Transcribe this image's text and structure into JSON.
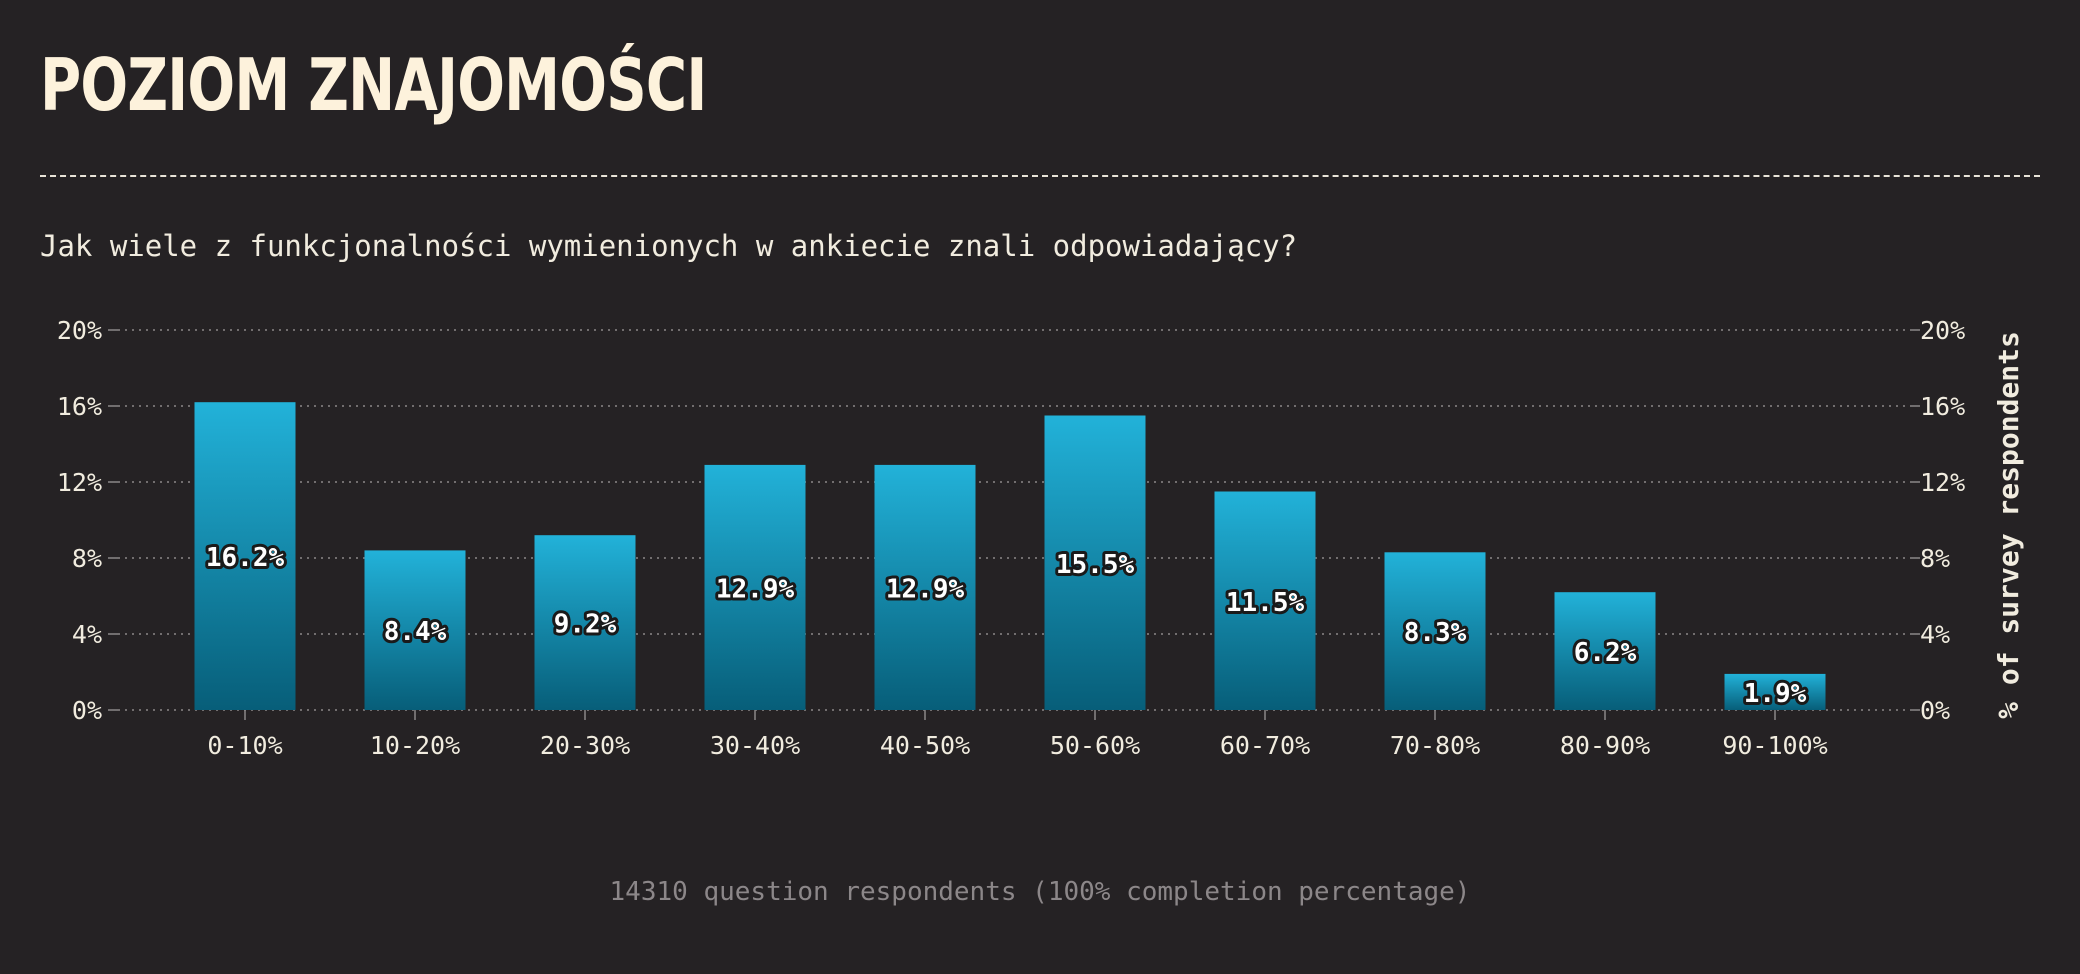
{
  "header": {
    "title": "POZIOM ZNAJOMOŚCI",
    "subtitle": "Jak wiele z funkcjonalności wymienionych w ankiecie znali odpowiadający?"
  },
  "footer": {
    "note": "14310 question respondents (100% completion percentage)"
  },
  "colors": {
    "background": "#252224",
    "bar_top": "#22b2d9",
    "bar_bottom": "#075e79",
    "text": "#f1ecdf",
    "grid": "#8b8788"
  },
  "chart_data": {
    "type": "bar",
    "categories": [
      "0-10%",
      "10-20%",
      "20-30%",
      "30-40%",
      "40-50%",
      "50-60%",
      "60-70%",
      "70-80%",
      "80-90%",
      "90-100%"
    ],
    "values": [
      16.2,
      8.4,
      9.2,
      12.9,
      12.9,
      15.5,
      11.5,
      8.3,
      6.2,
      1.9
    ],
    "data_labels": [
      "16.2%",
      "8.4%",
      "9.2%",
      "12.9%",
      "12.9%",
      "15.5%",
      "11.5%",
      "8.3%",
      "6.2%",
      "1.9%"
    ],
    "y_ticks": [
      0,
      4,
      8,
      12,
      16,
      20
    ],
    "y_tick_labels": [
      "0%",
      "4%",
      "8%",
      "12%",
      "16%",
      "20%"
    ],
    "ylim": [
      0,
      20
    ],
    "ylabel": "% of survey respondents",
    "xlabel": "",
    "grid": true,
    "axis_labels_both_sides": true
  }
}
